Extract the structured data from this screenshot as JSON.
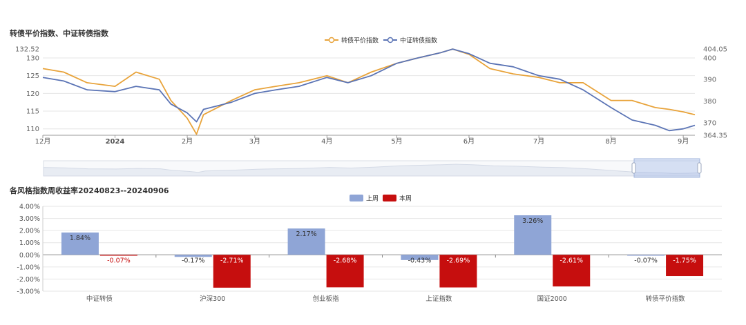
{
  "top": {
    "title": "转债平价指数、中证转债指数",
    "legend": [
      {
        "name": "转债平价指数",
        "color": "#e8a33a"
      },
      {
        "name": "中证转债指数",
        "color": "#5b74b5"
      }
    ]
  },
  "bottom": {
    "title": "各风格指数周收益率20240823--20240906",
    "legend": [
      {
        "name": "上周",
        "color": "#8fa5d6"
      },
      {
        "name": "本周",
        "color": "#c60e0e"
      }
    ]
  },
  "chart_data": [
    {
      "type": "line",
      "title": "转债平价指数、中证转债指数",
      "x_ticks": [
        "12月",
        "2024",
        "2月",
        "3月",
        "4月",
        "5月",
        "6月",
        "7月",
        "8月",
        "9月"
      ],
      "left_axis": {
        "ticks": [
          "110",
          "115",
          "120",
          "125",
          "130"
        ],
        "max_label": "132.52",
        "ylim": [
          108.2,
          132.52
        ]
      },
      "right_axis": {
        "ticks": [
          "370",
          "380",
          "390",
          "400"
        ],
        "max_label": "404.05",
        "min_label": "364.35",
        "ylim": [
          364.35,
          404.05
        ]
      },
      "x": [
        "2023-12-01",
        "2023-12-10",
        "2023-12-20",
        "2024-01-01",
        "2024-01-10",
        "2024-01-20",
        "2024-01-25",
        "2024-02-01",
        "2024-02-05",
        "2024-02-08",
        "2024-02-20",
        "2024-03-01",
        "2024-03-10",
        "2024-03-20",
        "2024-04-01",
        "2024-04-10",
        "2024-04-20",
        "2024-05-01",
        "2024-05-10",
        "2024-05-20",
        "2024-05-25",
        "2024-06-01",
        "2024-06-10",
        "2024-06-20",
        "2024-07-01",
        "2024-07-10",
        "2024-07-20",
        "2024-08-01",
        "2024-08-10",
        "2024-08-20",
        "2024-08-26",
        "2024-09-01",
        "2024-09-06"
      ],
      "series": [
        {
          "name": "转债平价指数",
          "axis": "left",
          "color": "#e8a33a",
          "values": [
            127,
            126,
            123,
            122,
            126,
            124,
            118,
            113,
            108.5,
            114,
            118,
            121,
            122,
            123,
            125,
            123,
            126,
            128.5,
            130,
            131.5,
            132.5,
            131,
            127,
            125.5,
            124.5,
            123,
            123,
            118,
            118,
            116,
            115.5,
            114.8,
            114
          ]
        },
        {
          "name": "中证转债指数",
          "axis": "left",
          "color": "#5b74b5",
          "values": [
            124.5,
            123.5,
            121,
            120.5,
            122,
            121,
            117,
            114.5,
            112,
            115.5,
            117.5,
            120,
            121,
            122,
            124.5,
            123,
            125,
            128.5,
            130,
            131.5,
            132.5,
            131.2,
            128.5,
            127.5,
            125,
            124,
            121,
            116,
            112.5,
            111,
            109.5,
            110,
            111
          ]
        }
      ]
    },
    {
      "type": "bar",
      "title": "各风格指数周收益率20240823--20240906",
      "categories": [
        "中证转债",
        "沪深300",
        "创业板指",
        "上证指数",
        "国证2000",
        "转债平价指数"
      ],
      "series": [
        {
          "name": "上周",
          "color": "#8fa5d6",
          "values": [
            1.84,
            -0.17,
            2.17,
            -0.43,
            3.26,
            -0.07
          ],
          "labels": [
            "1.84%",
            "-0.17%",
            "2.17%",
            "-0.43%",
            "3.26%",
            "-0.07%"
          ]
        },
        {
          "name": "本周",
          "color": "#c60e0e",
          "values": [
            -0.07,
            -2.71,
            -2.68,
            -2.69,
            -2.61,
            -1.75
          ],
          "labels": [
            "-0.07%",
            "-2.71%",
            "-2.68%",
            "-2.69%",
            "-2.61%",
            "-1.75%"
          ]
        }
      ],
      "y_ticks": [
        "4.00%",
        "3.00%",
        "2.00%",
        "1.00%",
        "0.00%",
        "-1.00%",
        "-2.00%",
        "-3.00%"
      ],
      "ylim": [
        -3.0,
        4.0
      ],
      "grid": true,
      "legend_position": "top-center"
    }
  ]
}
